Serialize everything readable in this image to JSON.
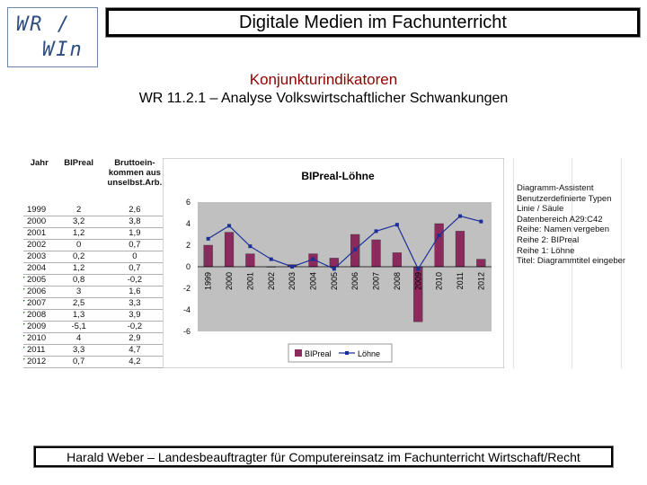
{
  "logo": {
    "line1": "WR /",
    "line2": "WIn"
  },
  "header": {
    "title": "Digitale Medien im Fachunterricht"
  },
  "subtitle": "Konjunkturindikatoren",
  "lesson": "WR 11.2.1 – Analyse Volkswirtschaftlicher Schwankungen",
  "table": {
    "headers": [
      "Jahr",
      "BIPreal",
      "Bruttoein-\nkommen aus\nunselbst.Arb."
    ],
    "rows": [
      [
        "1999",
        "2",
        "2,6"
      ],
      [
        "2000",
        "3,2",
        "3,8"
      ],
      [
        "2001",
        "1,2",
        "1,9"
      ],
      [
        "2002",
        "0",
        "0,7"
      ],
      [
        "2003",
        "0,2",
        "0"
      ],
      [
        "2004",
        "1,2",
        "0,7"
      ],
      [
        "2005",
        "0,8",
        "-0,2"
      ],
      [
        "2006",
        "3",
        "1,6"
      ],
      [
        "2007",
        "2,5",
        "3,3"
      ],
      [
        "2008",
        "1,3",
        "3,9"
      ],
      [
        "2009",
        "-5,1",
        "-0,2"
      ],
      [
        "2010",
        "4",
        "2,9"
      ],
      [
        "2011",
        "3,3",
        "4,7"
      ],
      [
        "2012",
        "0,7",
        "4,2"
      ]
    ]
  },
  "notes": [
    "Diagramm-Assistent",
    "Benutzerdefinierte Typen",
    "Linie / Säule",
    "Datenbereich A29:C42",
    "Reihe: Namen vergeben",
    "Reihe 2: BIPreal",
    "Reihe 1: Löhne",
    "Titel: Diagrammtitel eingeben"
  ],
  "colors": {
    "bar": "#8b2a5c",
    "line": "#1a2f99",
    "plot_bg": "#c0c0c0"
  },
  "chart_data": {
    "type": "bar",
    "title": "BIPreal-Löhne",
    "categories": [
      "1999",
      "2000",
      "2001",
      "2002",
      "2003",
      "2004",
      "2005",
      "2006",
      "2007",
      "2008",
      "2009",
      "2010",
      "2011",
      "2012"
    ],
    "series": [
      {
        "name": "BIPreal",
        "kind": "bar",
        "values": [
          2,
          3.2,
          1.2,
          0,
          0.2,
          1.2,
          0.8,
          3,
          2.5,
          1.3,
          -5.1,
          4,
          3.3,
          0.7
        ]
      },
      {
        "name": "Löhne",
        "kind": "line",
        "values": [
          2.6,
          3.8,
          1.9,
          0.7,
          0,
          0.7,
          -0.2,
          1.6,
          3.3,
          3.9,
          -0.2,
          2.9,
          4.7,
          4.2
        ]
      }
    ],
    "yticks": [
      "6",
      "4",
      "2",
      "0",
      "-2",
      "-4",
      "-6"
    ],
    "ylim": [
      -6,
      6
    ],
    "legend": [
      "BIPreal",
      "Löhne"
    ],
    "legend_position": "bottom",
    "xlabel": "",
    "ylabel": ""
  },
  "footer": "Harald Weber – Landesbeauftragter für Computereinsatz im Fachunterricht Wirtschaft/Recht"
}
